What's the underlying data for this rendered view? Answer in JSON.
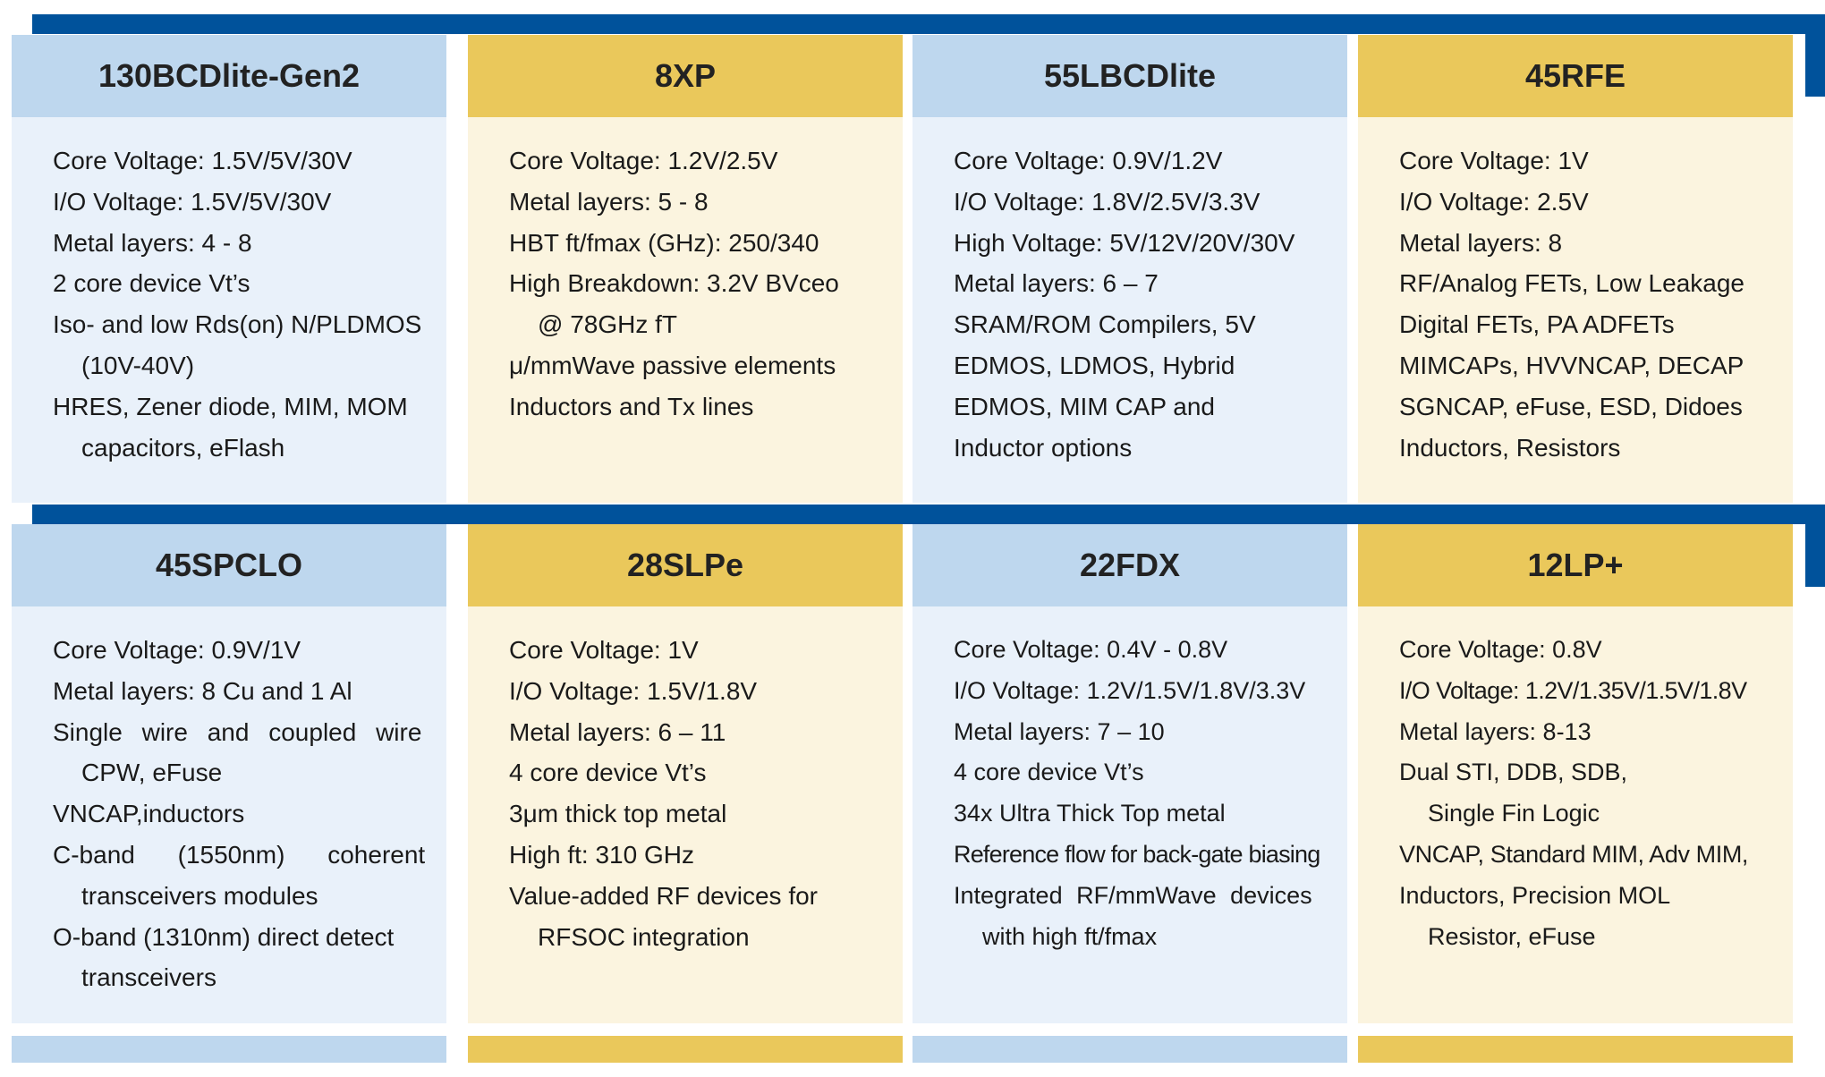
{
  "colors": {
    "band": "#00529b",
    "blue_header": "#bed7ee",
    "blue_body": "#e9f1fa",
    "gold_header": "#eac85b",
    "gold_body": "#fbf4df"
  },
  "cards": [
    {
      "title": "130BCDlite-Gen2",
      "lines": [
        "Core Voltage: 1.5V/5V/30V",
        "I/O Voltage: 1.5V/5V/30V",
        "Metal layers: 4 - 8",
        "2 core device Vt’s",
        "Iso- and low Rds(on) N/PLDMOS",
        "(10V-40V)",
        "HRES, Zener diode, MIM, MOM",
        "capacitors, eFlash"
      ]
    },
    {
      "title": "8XP",
      "lines": [
        "Core Voltage: 1.2V/2.5V",
        "Metal layers: 5 - 8",
        "HBT ft/fmax (GHz): 250/340",
        "High Breakdown: 3.2V BVceo",
        "@ 78GHz fT",
        "μ/mmWave passive elements",
        "Inductors and Tx lines"
      ]
    },
    {
      "title": "55LBCDlite",
      "lines": [
        "Core Voltage: 0.9V/1.2V",
        "I/O Voltage: 1.8V/2.5V/3.3V",
        "High Voltage: 5V/12V/20V/30V",
        "Metal layers: 6 – 7",
        "SRAM/ROM Compilers, 5V",
        "EDMOS, LDMOS, Hybrid",
        "EDMOS, MIM CAP and",
        "Inductor options"
      ]
    },
    {
      "title": "45RFE",
      "lines": [
        "Core Voltage: 1V",
        "I/O Voltage: 2.5V",
        "Metal layers: 8",
        "RF/Analog FETs, Low Leakage",
        "Digital FETs, PA ADFETs",
        "MIMCAPs, HVVNCAP, DECAP",
        "SGNCAP, eFuse, ESD, Didoes",
        "Inductors, Resistors"
      ]
    },
    {
      "title": "45SPCLO",
      "lines": [
        "Core Voltage: 0.9V/1V",
        "Metal layers: 8 Cu and 1 Al",
        "Single wire and coupled wire",
        "CPW, eFuse",
        "VNCAP,inductors",
        "C-band (1550nm) coherent",
        "transceivers modules",
        "O-band (1310nm) direct detect",
        "transceivers"
      ]
    },
    {
      "title": "28SLPe",
      "lines": [
        "Core Voltage: 1V",
        "I/O Voltage: 1.5V/1.8V",
        "Metal layers: 6 – 11",
        "4 core device Vt’s",
        "3μm thick top metal",
        "High ft: 310 GHz",
        "Value-added RF devices for",
        "RFSOC integration"
      ]
    },
    {
      "title": "22FDX",
      "lines": [
        "Core Voltage: 0.4V - 0.8V",
        "I/O Voltage: 1.2V/1.5V/1.8V/3.3V",
        "Metal layers: 7 – 10",
        "4 core device Vt’s",
        "34x Ultra Thick Top metal",
        "Reference flow for back-gate biasing",
        "Integrated RF/mmWave devices",
        "with high ft/fmax"
      ]
    },
    {
      "title": "12LP+",
      "lines": [
        "Core Voltage: 0.8V",
        "I/O Voltage: 1.2V/1.35V/1.5V/1.8V",
        "Metal layers: 8-13",
        "Dual STI, DDB, SDB,",
        "Single Fin Logic",
        "VNCAP, Standard MIM, Adv MIM,",
        "Inductors, Precision MOL",
        "Resistor, eFuse"
      ]
    }
  ]
}
